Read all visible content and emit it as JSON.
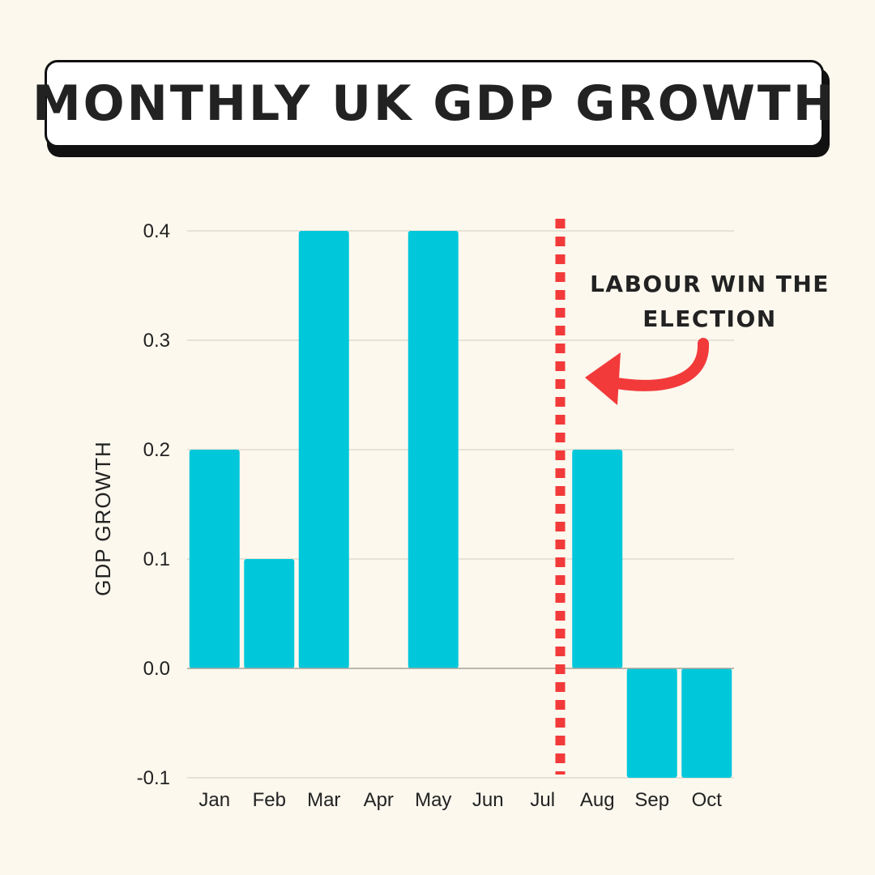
{
  "title": "MONTHLY UK GDP GROWTH",
  "chart_data": {
    "type": "bar",
    "categories": [
      "Jan",
      "Feb",
      "Mar",
      "Apr",
      "May",
      "Jun",
      "Jul",
      "Aug",
      "Sep",
      "Oct"
    ],
    "values": [
      0.2,
      0.1,
      0.4,
      0.0,
      0.4,
      0.0,
      0.0,
      0.2,
      -0.1,
      -0.1
    ],
    "ylabel": "GDP GROWTH",
    "xlabel": "",
    "ylim": [
      -0.1,
      0.4
    ],
    "yticks": [
      "-0.1",
      "0.0",
      "0.1",
      "0.2",
      "0.3",
      "0.4"
    ],
    "grid": true,
    "bar_color": "#00c8da",
    "annotation": {
      "lines": [
        "LABOUR WIN THE",
        "ELECTION"
      ],
      "marker_between": [
        "Jul",
        "Aug"
      ],
      "color": "#f23a3a"
    }
  }
}
